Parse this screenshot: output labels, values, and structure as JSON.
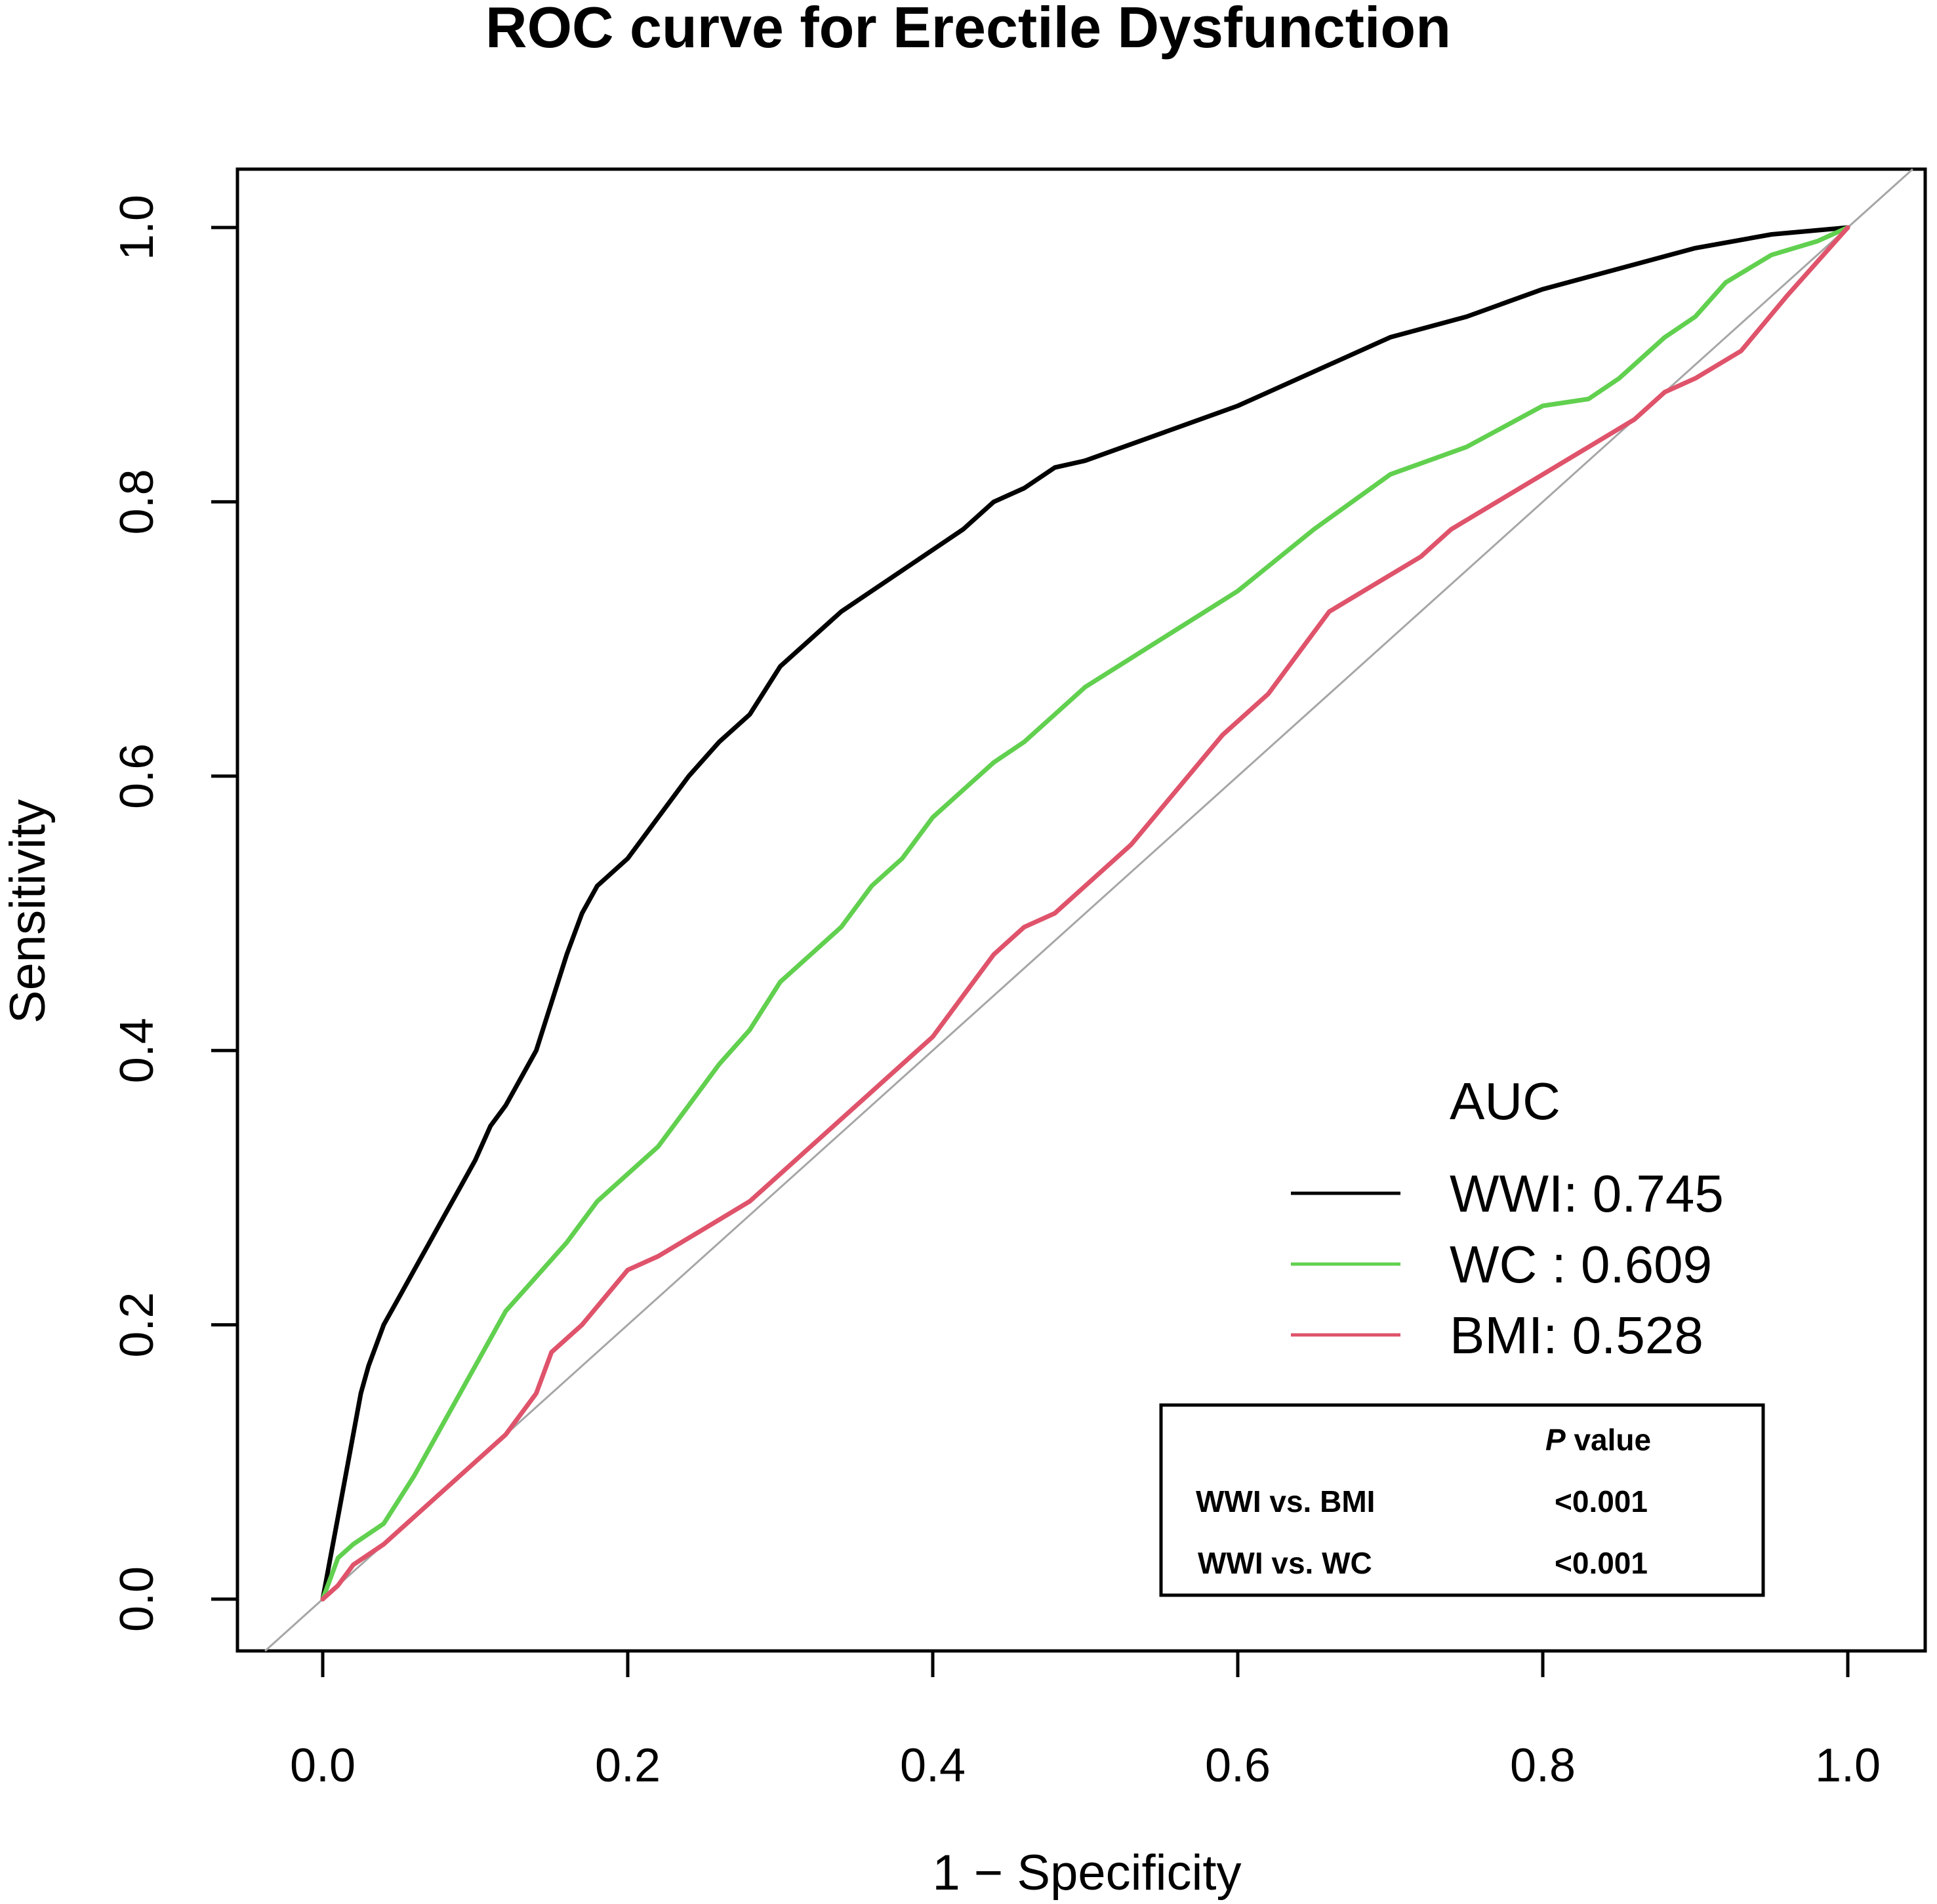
{
  "chart_data": {
    "type": "line",
    "title": "ROC curve for Erectile Dysfunction",
    "xlabel": "1 − Specificity",
    "ylabel": "Sensitivity",
    "xlim": [
      0.0,
      1.0
    ],
    "ylim": [
      0.0,
      1.0
    ],
    "xticks": [
      "0.0",
      "0.2",
      "0.4",
      "0.6",
      "0.8",
      "1.0"
    ],
    "yticks": [
      "0.0",
      "0.2",
      "0.4",
      "0.6",
      "0.8",
      "1.0"
    ],
    "reference_line": "diagonal",
    "grid": false,
    "legend": {
      "title": "AUC",
      "position": "bottom-right",
      "entries": [
        {
          "label": "WWI: 0.745",
          "color": "#000000"
        },
        {
          "label": "WC : 0.609",
          "color": "#61D04F"
        },
        {
          "label": "BMI: 0.528",
          "color": "#DF536B"
        }
      ]
    },
    "series": [
      {
        "name": "WWI",
        "auc": 0.745,
        "color": "#000000",
        "points": [
          [
            0,
            0
          ],
          [
            0.005,
            0.03
          ],
          [
            0.01,
            0.06
          ],
          [
            0.015,
            0.09
          ],
          [
            0.02,
            0.12
          ],
          [
            0.025,
            0.15
          ],
          [
            0.03,
            0.17
          ],
          [
            0.04,
            0.2
          ],
          [
            0.05,
            0.22
          ],
          [
            0.06,
            0.24
          ],
          [
            0.07,
            0.26
          ],
          [
            0.08,
            0.28
          ],
          [
            0.09,
            0.3
          ],
          [
            0.1,
            0.32
          ],
          [
            0.11,
            0.345
          ],
          [
            0.12,
            0.36
          ],
          [
            0.13,
            0.38
          ],
          [
            0.14,
            0.4
          ],
          [
            0.15,
            0.435
          ],
          [
            0.16,
            0.47
          ],
          [
            0.17,
            0.5
          ],
          [
            0.18,
            0.52
          ],
          [
            0.2,
            0.54
          ],
          [
            0.22,
            0.57
          ],
          [
            0.24,
            0.6
          ],
          [
            0.26,
            0.625
          ],
          [
            0.28,
            0.645
          ],
          [
            0.3,
            0.68
          ],
          [
            0.32,
            0.7
          ],
          [
            0.34,
            0.72
          ],
          [
            0.36,
            0.735
          ],
          [
            0.38,
            0.75
          ],
          [
            0.4,
            0.765
          ],
          [
            0.42,
            0.78
          ],
          [
            0.44,
            0.8
          ],
          [
            0.46,
            0.81
          ],
          [
            0.48,
            0.825
          ],
          [
            0.5,
            0.83
          ],
          [
            0.55,
            0.85
          ],
          [
            0.6,
            0.87
          ],
          [
            0.65,
            0.895
          ],
          [
            0.7,
            0.92
          ],
          [
            0.75,
            0.935
          ],
          [
            0.8,
            0.955
          ],
          [
            0.85,
            0.97
          ],
          [
            0.9,
            0.985
          ],
          [
            0.95,
            0.995
          ],
          [
            1,
            1
          ]
        ]
      },
      {
        "name": "WC",
        "auc": 0.609,
        "color": "#61D04F",
        "points": [
          [
            0,
            0
          ],
          [
            0.01,
            0.03
          ],
          [
            0.02,
            0.04
          ],
          [
            0.04,
            0.055
          ],
          [
            0.06,
            0.09
          ],
          [
            0.08,
            0.13
          ],
          [
            0.1,
            0.17
          ],
          [
            0.12,
            0.21
          ],
          [
            0.14,
            0.235
          ],
          [
            0.16,
            0.26
          ],
          [
            0.18,
            0.29
          ],
          [
            0.2,
            0.31
          ],
          [
            0.22,
            0.33
          ],
          [
            0.24,
            0.36
          ],
          [
            0.26,
            0.39
          ],
          [
            0.28,
            0.415
          ],
          [
            0.3,
            0.45
          ],
          [
            0.32,
            0.47
          ],
          [
            0.34,
            0.49
          ],
          [
            0.36,
            0.52
          ],
          [
            0.38,
            0.54
          ],
          [
            0.4,
            0.57
          ],
          [
            0.42,
            0.59
          ],
          [
            0.44,
            0.61
          ],
          [
            0.46,
            0.625
          ],
          [
            0.48,
            0.645
          ],
          [
            0.5,
            0.665
          ],
          [
            0.55,
            0.7
          ],
          [
            0.6,
            0.735
          ],
          [
            0.65,
            0.78
          ],
          [
            0.7,
            0.82
          ],
          [
            0.75,
            0.84
          ],
          [
            0.8,
            0.87
          ],
          [
            0.83,
            0.875
          ],
          [
            0.85,
            0.89
          ],
          [
            0.88,
            0.92
          ],
          [
            0.9,
            0.935
          ],
          [
            0.92,
            0.96
          ],
          [
            0.95,
            0.98
          ],
          [
            0.98,
            0.99
          ],
          [
            1,
            1
          ]
        ]
      },
      {
        "name": "BMI",
        "auc": 0.528,
        "color": "#DF536B",
        "points": [
          [
            0,
            0
          ],
          [
            0.01,
            0.01
          ],
          [
            0.02,
            0.025
          ],
          [
            0.04,
            0.04
          ],
          [
            0.06,
            0.06
          ],
          [
            0.08,
            0.08
          ],
          [
            0.1,
            0.1
          ],
          [
            0.12,
            0.12
          ],
          [
            0.14,
            0.15
          ],
          [
            0.15,
            0.18
          ],
          [
            0.17,
            0.2
          ],
          [
            0.2,
            0.24
          ],
          [
            0.22,
            0.25
          ],
          [
            0.25,
            0.27
          ],
          [
            0.28,
            0.29
          ],
          [
            0.3,
            0.31
          ],
          [
            0.33,
            0.34
          ],
          [
            0.36,
            0.37
          ],
          [
            0.38,
            0.39
          ],
          [
            0.4,
            0.41
          ],
          [
            0.42,
            0.44
          ],
          [
            0.44,
            0.47
          ],
          [
            0.46,
            0.49
          ],
          [
            0.48,
            0.5
          ],
          [
            0.5,
            0.52
          ],
          [
            0.53,
            0.55
          ],
          [
            0.56,
            0.59
          ],
          [
            0.59,
            0.63
          ],
          [
            0.62,
            0.66
          ],
          [
            0.64,
            0.69
          ],
          [
            0.66,
            0.72
          ],
          [
            0.69,
            0.74
          ],
          [
            0.72,
            0.76
          ],
          [
            0.74,
            0.78
          ],
          [
            0.77,
            0.8
          ],
          [
            0.8,
            0.82
          ],
          [
            0.83,
            0.84
          ],
          [
            0.86,
            0.86
          ],
          [
            0.88,
            0.88
          ],
          [
            0.9,
            0.89
          ],
          [
            0.93,
            0.91
          ],
          [
            0.96,
            0.95
          ],
          [
            1,
            1
          ]
        ]
      }
    ]
  },
  "pvalue_table": {
    "header_italic": "P",
    "header_rest": " value",
    "rows": [
      {
        "comparison": "WWI vs. BMI",
        "p": "<0.001"
      },
      {
        "comparison": "WWI vs. WC",
        "p": "<0.001"
      }
    ]
  }
}
